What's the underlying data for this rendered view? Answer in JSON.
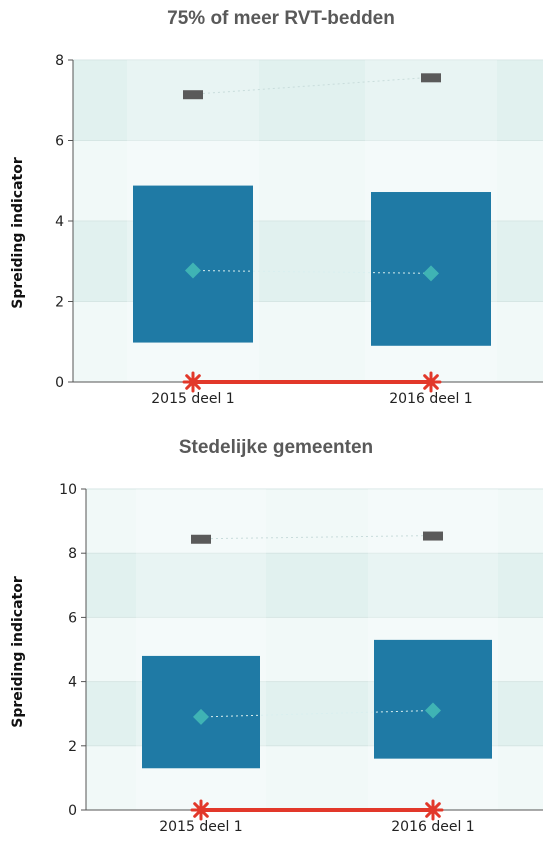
{
  "colors": {
    "band_light": "#f1f9f8",
    "band_dark": "#e1f1ef",
    "box": "#1f7aa5",
    "median": "#3fb3b4",
    "max": "#5a5a5a",
    "min": "#e2382a",
    "axis": "#555555"
  },
  "chart_data": [
    {
      "type": "box",
      "title": "75% of meer RVT-bedden",
      "ylabel": "Spreiding indicator",
      "xlabel": "",
      "ylim": [
        0,
        8
      ],
      "yticks": [
        "0",
        "2",
        "4",
        "6",
        "8"
      ],
      "categories": [
        "2015 deel 1",
        "2016 deel 1"
      ],
      "min": [
        0,
        0
      ],
      "q1": [
        0.98,
        0.9
      ],
      "median": [
        2.77,
        2.7
      ],
      "q3": [
        4.88,
        4.72
      ],
      "max": [
        7.15,
        7.57
      ]
    },
    {
      "type": "box",
      "title": "Stedelijke gemeenten",
      "ylabel": "Spreiding indicator",
      "xlabel": "",
      "ylim": [
        0,
        10
      ],
      "yticks": [
        "0",
        "2",
        "4",
        "6",
        "8",
        "10"
      ],
      "categories": [
        "2015 deel 1",
        "2016 deel 1"
      ],
      "min": [
        0,
        0
      ],
      "q1": [
        1.3,
        1.6
      ],
      "median": [
        2.9,
        3.1
      ],
      "q3": [
        4.8,
        5.3
      ],
      "max": [
        8.45,
        8.55
      ]
    }
  ]
}
